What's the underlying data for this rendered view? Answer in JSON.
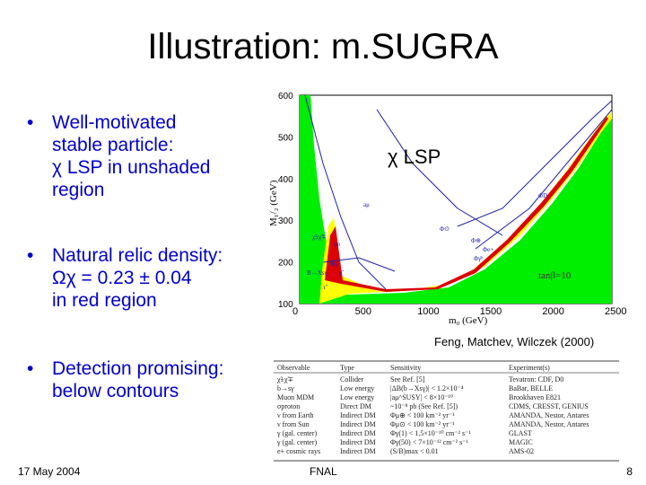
{
  "slide": {
    "title": "Illustration: m.SUGRA",
    "footer_date": "17 May 2004",
    "footer_center": "FNAL",
    "page_number": "8"
  },
  "bullets": [
    {
      "marker": "•",
      "lines": [
        "Well-motivated",
        "stable particle:"
      ],
      "sub": [
        "χ LSP in unshaded",
        "region"
      ]
    },
    {
      "marker": "•",
      "lines": [
        "Natural relic density:"
      ],
      "sub": [
        "Ωχ = 0.23 ± 0.04",
        "in red region"
      ]
    },
    {
      "marker": "•",
      "lines": [
        "Detection promising:",
        "below contours"
      ],
      "sub": []
    }
  ],
  "plot": {
    "lsp_label": "χ LSP",
    "x_ticks": [
      "0",
      "500",
      "1000",
      "1500",
      "2000",
      "2500"
    ],
    "y_ticks": [
      "100",
      "200",
      "300",
      "400",
      "500",
      "600"
    ],
    "x_label": "m₀ (GeV)",
    "y_label": "M₁/₂ (GeV)",
    "tanb_label": "tanβ=10",
    "region_labels": [
      "aμ",
      "Φ⊙",
      "Φ⊕",
      "σp",
      "Φγ",
      "Φe+",
      "B→Xsγ",
      "χ̃±χ̃∓",
      "ν̃",
      "Φγ̄ᵖ",
      "ΦD",
      "τ̃"
    ],
    "credit": "Feng, Matchev, Wilczek (2000)",
    "colors": {
      "green": "#00ee00",
      "yellow": "#ffff00",
      "red": "#dd0000",
      "contour": "#2020aa"
    }
  },
  "table": {
    "headers": [
      "Observable",
      "Type",
      "Sensitivity",
      "Experiment(s)"
    ],
    "rows": [
      [
        "χ̃±χ̃∓",
        "Collider",
        "See Ref. [5]",
        "Tevatron: CDF, D0"
      ],
      [
        "b→sγ",
        "Low energy",
        "|ΔB(b→Xsγ)| < 1.2×10⁻⁴",
        "BaBar, BELLE"
      ],
      [
        "Muon MDM",
        "Low energy",
        "|aμ^SUSY| < 8×10⁻¹⁰",
        "Brookhaven E821"
      ],
      [
        "σproton",
        "Direct DM",
        "~10⁻⁸ pb (See Ref. [5])",
        "CDMS, CRESST, GENIUS"
      ],
      [
        "ν from Earth",
        "Indirect DM",
        "Φμ⊕ < 100 km⁻² yr⁻¹",
        "AMANDA, Nestor, Antares"
      ],
      [
        "ν from Sun",
        "Indirect DM",
        "Φμ⊙ < 100 km⁻² yr⁻¹",
        "AMANDA, Nestor, Antares"
      ],
      [
        "γ (gal. center)",
        "Indirect DM",
        "Φγ(1) < 1.5×10⁻¹⁰ cm⁻² s⁻¹",
        "GLAST"
      ],
      [
        "γ (gal. center)",
        "Indirect DM",
        "Φγ(50) < 7×10⁻¹² cm⁻² s⁻¹",
        "MAGIC"
      ],
      [
        "e+ cosmic rays",
        "Indirect DM",
        "(S/B)max < 0.01",
        "AMS-02"
      ]
    ]
  }
}
